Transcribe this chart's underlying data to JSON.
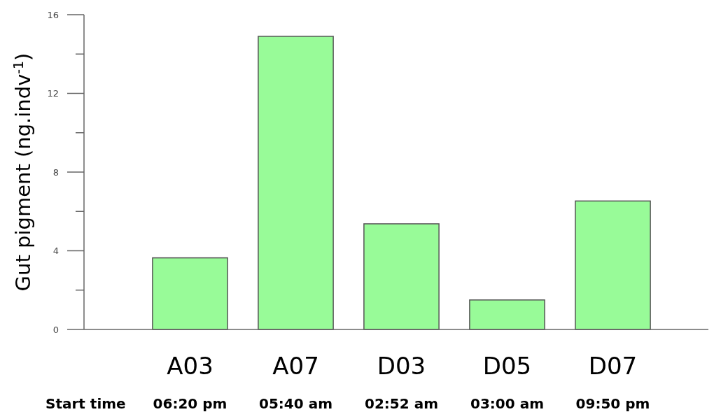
{
  "chart_data": {
    "type": "bar",
    "ylabel": "Gut pigment (ng.indv$^{-1}$)",
    "categories": [
      "A03",
      "A07",
      "D03",
      "D05",
      "D07"
    ],
    "values": [
      3.64,
      14.9,
      5.37,
      1.5,
      6.53
    ],
    "color": "#98fb98",
    "ylim": [
      0,
      16
    ],
    "yticks": [
      0,
      {
        "value": 2,
        "label": null
      },
      4,
      {
        "value": 6,
        "label": null
      },
      8,
      {
        "value": 10,
        "label": null
      },
      12,
      {
        "value": 14,
        "label": null
      },
      16
    ],
    "grid": false,
    "annotations": [
      "Start time",
      "06:20 pm",
      "05:40 am",
      "02:52 am",
      "03:00 am",
      "09:50 pm"
    ]
  }
}
